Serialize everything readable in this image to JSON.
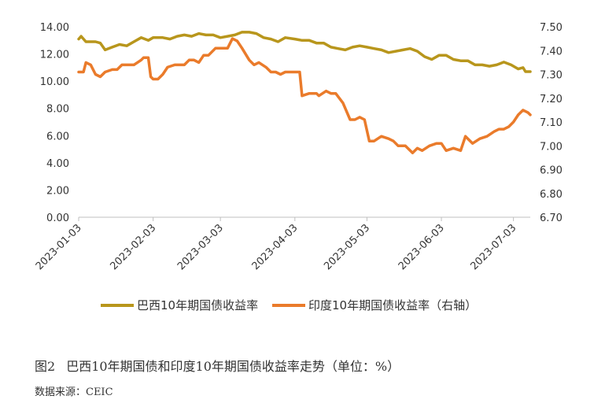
{
  "chart_data": {
    "type": "line",
    "title": "",
    "xlabel": "",
    "ylabel": "",
    "y_left": {
      "lim": [
        0,
        14
      ],
      "ticks": [
        "0.00",
        "2.00",
        "4.00",
        "6.00",
        "8.00",
        "10.00",
        "12.00",
        "14.00"
      ]
    },
    "y_right": {
      "lim": [
        6.7,
        7.5
      ],
      "ticks": [
        "6.70",
        "6.80",
        "6.90",
        "7.00",
        "7.10",
        "7.20",
        "7.30",
        "7.40",
        "7.50"
      ]
    },
    "x_ticks": [
      "2023-01-03",
      "2023-02-03",
      "2023-03-03",
      "2023-04-03",
      "2023-05-03",
      "2023-06-03",
      "2023-07-03"
    ],
    "x_range": [
      "2023-01-03",
      "2023-07-10"
    ],
    "grid": false,
    "legend_position": "bottom",
    "series": [
      {
        "name": "巴西10年期国债收益率",
        "axis": "left",
        "color": "#b8961c",
        "points": [
          [
            "2023-01-03",
            13.1
          ],
          [
            "2023-01-04",
            13.3
          ],
          [
            "2023-01-06",
            12.9
          ],
          [
            "2023-01-10",
            12.9
          ],
          [
            "2023-01-12",
            12.8
          ],
          [
            "2023-01-14",
            12.3
          ],
          [
            "2023-01-17",
            12.5
          ],
          [
            "2023-01-20",
            12.7
          ],
          [
            "2023-01-23",
            12.6
          ],
          [
            "2023-01-26",
            12.9
          ],
          [
            "2023-01-29",
            13.2
          ],
          [
            "2023-02-01",
            13.0
          ],
          [
            "2023-02-03",
            13.2
          ],
          [
            "2023-02-07",
            13.2
          ],
          [
            "2023-02-10",
            13.1
          ],
          [
            "2023-02-13",
            13.3
          ],
          [
            "2023-02-16",
            13.4
          ],
          [
            "2023-02-19",
            13.3
          ],
          [
            "2023-02-22",
            13.5
          ],
          [
            "2023-02-25",
            13.4
          ],
          [
            "2023-02-28",
            13.4
          ],
          [
            "2023-03-03",
            13.2
          ],
          [
            "2023-03-06",
            13.3
          ],
          [
            "2023-03-09",
            13.4
          ],
          [
            "2023-03-12",
            13.6
          ],
          [
            "2023-03-15",
            13.6
          ],
          [
            "2023-03-18",
            13.5
          ],
          [
            "2023-03-21",
            13.2
          ],
          [
            "2023-03-24",
            13.1
          ],
          [
            "2023-03-27",
            12.9
          ],
          [
            "2023-03-30",
            13.2
          ],
          [
            "2023-04-03",
            13.1
          ],
          [
            "2023-04-06",
            13.0
          ],
          [
            "2023-04-09",
            13.0
          ],
          [
            "2023-04-12",
            12.8
          ],
          [
            "2023-04-15",
            12.8
          ],
          [
            "2023-04-18",
            12.5
          ],
          [
            "2023-04-21",
            12.4
          ],
          [
            "2023-04-24",
            12.3
          ],
          [
            "2023-04-27",
            12.5
          ],
          [
            "2023-04-30",
            12.6
          ],
          [
            "2023-05-03",
            12.5
          ],
          [
            "2023-05-06",
            12.4
          ],
          [
            "2023-05-09",
            12.3
          ],
          [
            "2023-05-12",
            12.1
          ],
          [
            "2023-05-15",
            12.2
          ],
          [
            "2023-05-18",
            12.3
          ],
          [
            "2023-05-21",
            12.4
          ],
          [
            "2023-05-24",
            12.2
          ],
          [
            "2023-05-27",
            11.8
          ],
          [
            "2023-05-30",
            11.6
          ],
          [
            "2023-06-02",
            11.9
          ],
          [
            "2023-06-05",
            11.9
          ],
          [
            "2023-06-08",
            11.6
          ],
          [
            "2023-06-11",
            11.5
          ],
          [
            "2023-06-14",
            11.5
          ],
          [
            "2023-06-17",
            11.2
          ],
          [
            "2023-06-20",
            11.2
          ],
          [
            "2023-06-23",
            11.1
          ],
          [
            "2023-06-26",
            11.2
          ],
          [
            "2023-06-29",
            11.4
          ],
          [
            "2023-07-02",
            11.2
          ],
          [
            "2023-07-05",
            10.9
          ],
          [
            "2023-07-07",
            11.0
          ],
          [
            "2023-07-08",
            10.7
          ],
          [
            "2023-07-10",
            10.7
          ]
        ]
      },
      {
        "name": "印度10年期国债收益率（右轴）",
        "axis": "right",
        "color": "#ea7b2b",
        "points": [
          [
            "2023-01-03",
            7.31
          ],
          [
            "2023-01-05",
            7.31
          ],
          [
            "2023-01-06",
            7.35
          ],
          [
            "2023-01-08",
            7.34
          ],
          [
            "2023-01-10",
            7.3
          ],
          [
            "2023-01-12",
            7.29
          ],
          [
            "2023-01-14",
            7.31
          ],
          [
            "2023-01-17",
            7.32
          ],
          [
            "2023-01-19",
            7.32
          ],
          [
            "2023-01-21",
            7.34
          ],
          [
            "2023-01-24",
            7.34
          ],
          [
            "2023-01-26",
            7.34
          ],
          [
            "2023-01-29",
            7.36
          ],
          [
            "2023-01-30",
            7.37
          ],
          [
            "2023-02-01",
            7.37
          ],
          [
            "2023-02-02",
            7.29
          ],
          [
            "2023-02-03",
            7.28
          ],
          [
            "2023-02-05",
            7.28
          ],
          [
            "2023-02-07",
            7.3
          ],
          [
            "2023-02-09",
            7.33
          ],
          [
            "2023-02-12",
            7.34
          ],
          [
            "2023-02-14",
            7.34
          ],
          [
            "2023-02-16",
            7.34
          ],
          [
            "2023-02-18",
            7.36
          ],
          [
            "2023-02-20",
            7.36
          ],
          [
            "2023-02-22",
            7.35
          ],
          [
            "2023-02-24",
            7.38
          ],
          [
            "2023-02-26",
            7.38
          ],
          [
            "2023-03-01",
            7.41
          ],
          [
            "2023-03-03",
            7.41
          ],
          [
            "2023-03-06",
            7.41
          ],
          [
            "2023-03-08",
            7.45
          ],
          [
            "2023-03-10",
            7.44
          ],
          [
            "2023-03-12",
            7.41
          ],
          [
            "2023-03-15",
            7.36
          ],
          [
            "2023-03-17",
            7.34
          ],
          [
            "2023-03-19",
            7.35
          ],
          [
            "2023-03-22",
            7.33
          ],
          [
            "2023-03-24",
            7.31
          ],
          [
            "2023-03-26",
            7.31
          ],
          [
            "2023-03-28",
            7.3
          ],
          [
            "2023-03-30",
            7.31
          ],
          [
            "2023-04-02",
            7.31
          ],
          [
            "2023-04-05",
            7.31
          ],
          [
            "2023-04-06",
            7.21
          ],
          [
            "2023-04-09",
            7.22
          ],
          [
            "2023-04-12",
            7.22
          ],
          [
            "2023-04-13",
            7.21
          ],
          [
            "2023-04-16",
            7.23
          ],
          [
            "2023-04-18",
            7.22
          ],
          [
            "2023-04-20",
            7.22
          ],
          [
            "2023-04-23",
            7.18
          ],
          [
            "2023-04-26",
            7.11
          ],
          [
            "2023-04-28",
            7.11
          ],
          [
            "2023-04-30",
            7.12
          ],
          [
            "2023-05-02",
            7.11
          ],
          [
            "2023-05-04",
            7.02
          ],
          [
            "2023-05-06",
            7.02
          ],
          [
            "2023-05-09",
            7.04
          ],
          [
            "2023-05-12",
            7.03
          ],
          [
            "2023-05-14",
            7.02
          ],
          [
            "2023-05-16",
            7.0
          ],
          [
            "2023-05-19",
            7.0
          ],
          [
            "2023-05-22",
            6.97
          ],
          [
            "2023-05-24",
            6.99
          ],
          [
            "2023-05-26",
            6.98
          ],
          [
            "2023-05-29",
            7.0
          ],
          [
            "2023-06-01",
            7.01
          ],
          [
            "2023-06-03",
            7.01
          ],
          [
            "2023-06-05",
            6.98
          ],
          [
            "2023-06-08",
            6.99
          ],
          [
            "2023-06-11",
            6.98
          ],
          [
            "2023-06-13",
            7.04
          ],
          [
            "2023-06-16",
            7.01
          ],
          [
            "2023-06-19",
            7.03
          ],
          [
            "2023-06-22",
            7.04
          ],
          [
            "2023-06-25",
            7.06
          ],
          [
            "2023-06-27",
            7.07
          ],
          [
            "2023-06-29",
            7.07
          ],
          [
            "2023-07-01",
            7.08
          ],
          [
            "2023-07-03",
            7.1
          ],
          [
            "2023-07-05",
            7.13
          ],
          [
            "2023-07-07",
            7.15
          ],
          [
            "2023-07-09",
            7.14
          ],
          [
            "2023-07-10",
            7.13
          ]
        ]
      }
    ]
  },
  "caption": {
    "figure_number": "图2",
    "title": "巴西10年期国债和印度10年期国债收益率走势（单位：%）"
  },
  "source": "数据来源：CEIC"
}
